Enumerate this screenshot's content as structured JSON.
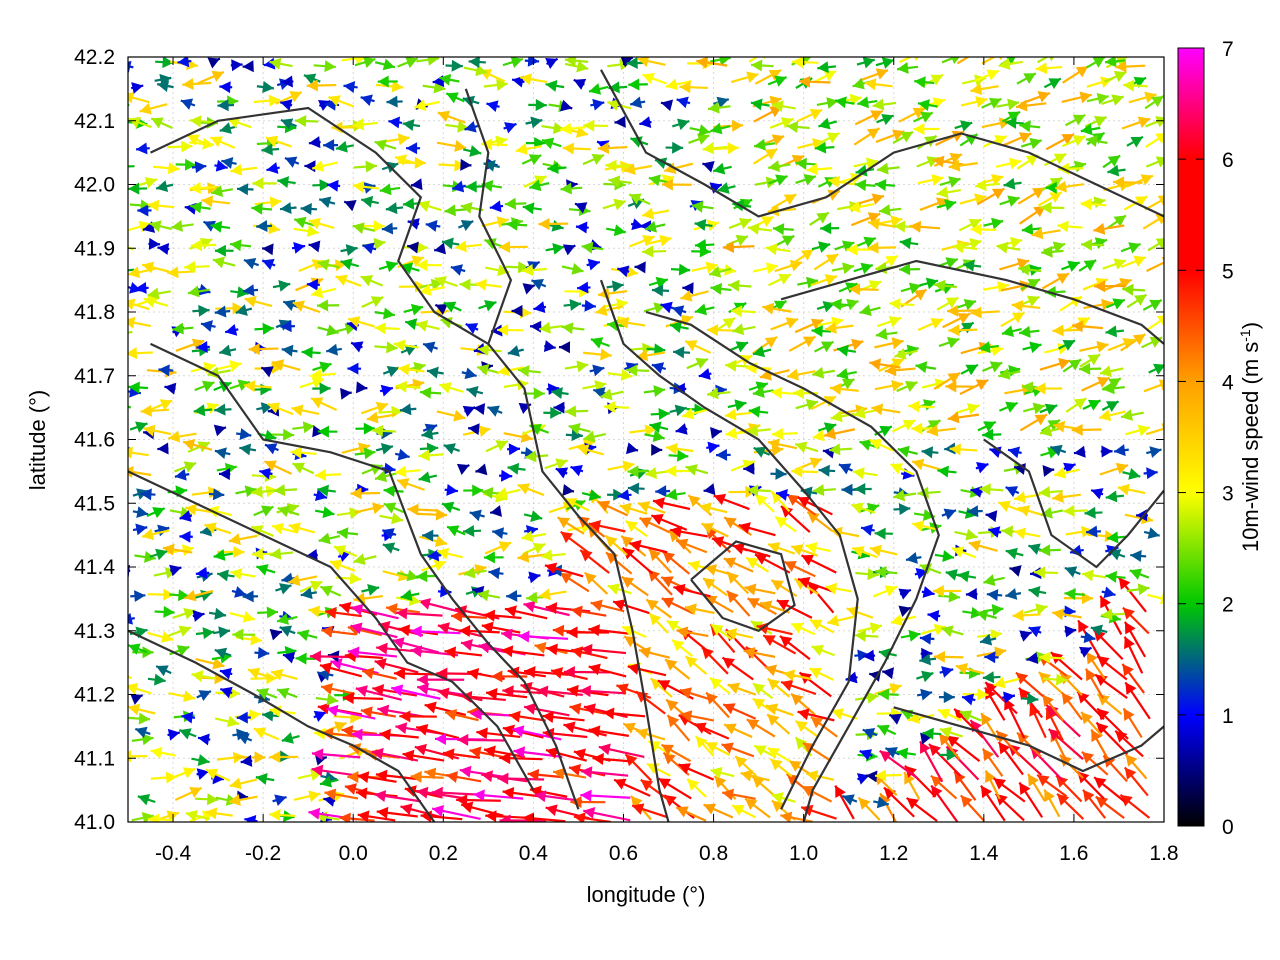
{
  "chart_data": {
    "type": "vector-field",
    "title": "",
    "xlabel": "longitude (°)",
    "ylabel": "latitude (°)",
    "xlim": [
      -0.5,
      1.8
    ],
    "ylim": [
      41.0,
      42.2
    ],
    "xticks": [
      -0.4,
      -0.2,
      0.0,
      0.2,
      0.4,
      0.6,
      0.8,
      1.0,
      1.2,
      1.4,
      1.6,
      1.8
    ],
    "xtick_labels": [
      "-0.4",
      "-0.2",
      "0.0",
      "0.2",
      "0.4",
      "0.6",
      "0.8",
      "1.0",
      "1.2",
      "1.4",
      "1.6",
      "1.8"
    ],
    "yticks": [
      41.0,
      41.1,
      41.2,
      41.3,
      41.4,
      41.5,
      41.6,
      41.7,
      41.8,
      41.9,
      42.0,
      42.1,
      42.2
    ],
    "ytick_labels": [
      "41.0",
      "41.1",
      "41.2",
      "41.3",
      "41.4",
      "41.5",
      "41.6",
      "41.7",
      "41.8",
      "41.9",
      "42.0",
      "42.1",
      "42.2"
    ],
    "grid": true,
    "colorbar": {
      "label_main": "10m-wind speed (m s",
      "label_sup": "-1",
      "label_close": ")",
      "range": [
        0,
        7
      ],
      "ticks": [
        0,
        1,
        2,
        3,
        4,
        5,
        6,
        7
      ],
      "tick_labels": [
        "0",
        "1",
        "2",
        "3",
        "4",
        "5",
        "6",
        "7"
      ],
      "palette": [
        "#000000",
        "#0000ff",
        "#00c800",
        "#ffff00",
        "#ffa000",
        "#ff0000",
        "#ff00ff"
      ]
    },
    "contours": [
      [
        [
          -0.45,
          41.75
        ],
        [
          -0.3,
          41.7
        ],
        [
          -0.2,
          41.6
        ],
        [
          -0.05,
          41.58
        ],
        [
          0.08,
          41.55
        ],
        [
          0.15,
          41.42
        ],
        [
          0.22,
          41.35
        ],
        [
          0.3,
          41.28
        ],
        [
          0.38,
          41.22
        ],
        [
          0.45,
          41.12
        ],
        [
          0.5,
          41.02
        ]
      ],
      [
        [
          -0.5,
          41.55
        ],
        [
          -0.35,
          41.5
        ],
        [
          -0.2,
          41.45
        ],
        [
          -0.05,
          41.4
        ],
        [
          0.05,
          41.32
        ],
        [
          0.12,
          41.25
        ],
        [
          0.22,
          41.22
        ],
        [
          0.32,
          41.15
        ],
        [
          0.4,
          41.05
        ]
      ],
      [
        [
          -0.5,
          41.3
        ],
        [
          -0.35,
          41.25
        ],
        [
          -0.22,
          41.2
        ],
        [
          -0.1,
          41.15
        ],
        [
          0.0,
          41.12
        ],
        [
          0.1,
          41.08
        ],
        [
          0.18,
          41.0
        ]
      ],
      [
        [
          0.25,
          42.15
        ],
        [
          0.3,
          42.05
        ],
        [
          0.28,
          41.95
        ],
        [
          0.35,
          41.85
        ],
        [
          0.3,
          41.75
        ],
        [
          0.38,
          41.68
        ],
        [
          0.42,
          41.55
        ],
        [
          0.5,
          41.48
        ],
        [
          0.58,
          41.42
        ],
        [
          0.62,
          41.3
        ],
        [
          0.65,
          41.18
        ],
        [
          0.68,
          41.05
        ],
        [
          0.7,
          41.0
        ]
      ],
      [
        [
          0.55,
          41.85
        ],
        [
          0.6,
          41.75
        ],
        [
          0.68,
          41.7
        ],
        [
          0.78,
          41.65
        ],
        [
          0.9,
          41.6
        ],
        [
          1.0,
          41.52
        ],
        [
          1.08,
          41.45
        ],
        [
          1.12,
          41.35
        ],
        [
          1.1,
          41.22
        ],
        [
          1.02,
          41.12
        ],
        [
          0.95,
          41.02
        ]
      ],
      [
        [
          0.65,
          41.8
        ],
        [
          0.75,
          41.78
        ],
        [
          0.88,
          41.72
        ],
        [
          1.0,
          41.68
        ],
        [
          1.15,
          41.62
        ],
        [
          1.25,
          41.55
        ],
        [
          1.3,
          41.45
        ],
        [
          1.25,
          41.35
        ],
        [
          1.18,
          41.25
        ],
        [
          1.1,
          41.15
        ],
        [
          1.02,
          41.05
        ],
        [
          1.0,
          41.0
        ]
      ],
      [
        [
          1.2,
          41.18
        ],
        [
          1.35,
          41.15
        ],
        [
          1.5,
          41.12
        ],
        [
          1.62,
          41.08
        ],
        [
          1.75,
          41.12
        ],
        [
          1.8,
          41.15
        ]
      ],
      [
        [
          1.4,
          41.6
        ],
        [
          1.5,
          41.55
        ],
        [
          1.55,
          41.45
        ],
        [
          1.65,
          41.4
        ],
        [
          1.72,
          41.45
        ],
        [
          1.8,
          41.52
        ]
      ],
      [
        [
          -0.45,
          42.05
        ],
        [
          -0.3,
          42.1
        ],
        [
          -0.1,
          42.12
        ],
        [
          0.05,
          42.05
        ],
        [
          0.15,
          41.98
        ],
        [
          0.1,
          41.88
        ],
        [
          0.18,
          41.8
        ],
        [
          0.3,
          41.75
        ]
      ],
      [
        [
          0.55,
          42.18
        ],
        [
          0.65,
          42.05
        ],
        [
          0.78,
          42.0
        ],
        [
          0.9,
          41.95
        ],
        [
          1.05,
          41.98
        ],
        [
          1.2,
          42.05
        ],
        [
          1.35,
          42.08
        ],
        [
          1.5,
          42.05
        ],
        [
          1.65,
          42.0
        ],
        [
          1.8,
          41.95
        ]
      ],
      [
        [
          0.95,
          41.82
        ],
        [
          1.1,
          41.85
        ],
        [
          1.25,
          41.88
        ],
        [
          1.45,
          41.85
        ],
        [
          1.6,
          41.82
        ],
        [
          1.75,
          41.78
        ],
        [
          1.8,
          41.75
        ]
      ],
      [
        [
          0.75,
          41.38
        ],
        [
          0.82,
          41.32
        ],
        [
          0.9,
          41.3
        ],
        [
          0.98,
          41.34
        ],
        [
          0.95,
          41.42
        ],
        [
          0.85,
          41.44
        ],
        [
          0.75,
          41.38
        ]
      ]
    ]
  }
}
